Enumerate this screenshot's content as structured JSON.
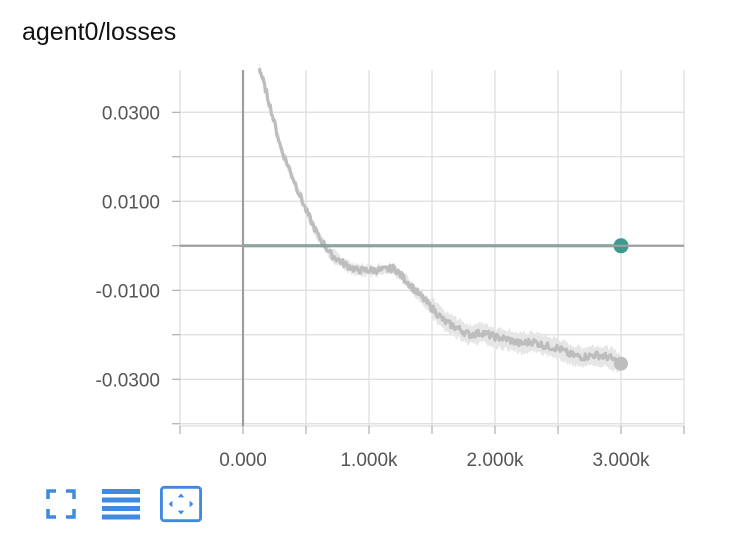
{
  "title": "agent0/losses",
  "toolbar": {
    "fullscreen_icon": "fullscreen-icon",
    "data_toggle_icon": "list-lines-icon",
    "fit_domain_icon": "fit-domain-icon"
  },
  "colors": {
    "teal_series": "#3a9b8c",
    "gray_series": "#bdbdbd",
    "gray_band": "#e6e6e6",
    "grid": "#dddddd",
    "axis": "#9e9e9e",
    "icon": "#3f8ae0"
  },
  "chart_data": {
    "type": "line",
    "title": "agent0/losses",
    "xlabel": "",
    "ylabel": "",
    "xlim": [
      -500,
      3500
    ],
    "ylim": [
      -0.0405,
      0.0395
    ],
    "x_ticks": [
      0,
      1000,
      2000,
      3000
    ],
    "x_tick_labels": [
      "0.000",
      "1.000k",
      "2.000k",
      "3.000k"
    ],
    "y_ticks": [
      0.03,
      0.01,
      -0.01,
      -0.03
    ],
    "y_tick_labels": [
      "0.0300",
      "0.0100",
      "-0.0100",
      "-0.0300"
    ],
    "grid": true,
    "series": [
      {
        "color": "#3a9b8c",
        "x": [
          0,
          500,
          1000,
          1500,
          2000,
          2500,
          3000
        ],
        "y": [
          0.0,
          0.0,
          0.0,
          0.0,
          0.0,
          0.0,
          0.0
        ]
      },
      {
        "color": "#bdbdbd",
        "x": [
          130,
          200,
          300,
          400,
          500,
          600,
          700,
          800,
          900,
          1000,
          1100,
          1200,
          1300,
          1400,
          1500,
          1600,
          1700,
          1800,
          1900,
          2000,
          2100,
          2200,
          2300,
          2400,
          2500,
          2600,
          2700,
          2800,
          2900,
          3000
        ],
        "y": [
          0.04,
          0.033,
          0.022,
          0.015,
          0.008,
          0.002,
          -0.002,
          -0.004,
          -0.0055,
          -0.0055,
          -0.0055,
          -0.005,
          -0.008,
          -0.011,
          -0.014,
          -0.017,
          -0.0185,
          -0.02,
          -0.0195,
          -0.0205,
          -0.021,
          -0.022,
          -0.0215,
          -0.0225,
          -0.023,
          -0.0245,
          -0.025,
          -0.0245,
          -0.025,
          -0.0265
        ]
      }
    ]
  }
}
